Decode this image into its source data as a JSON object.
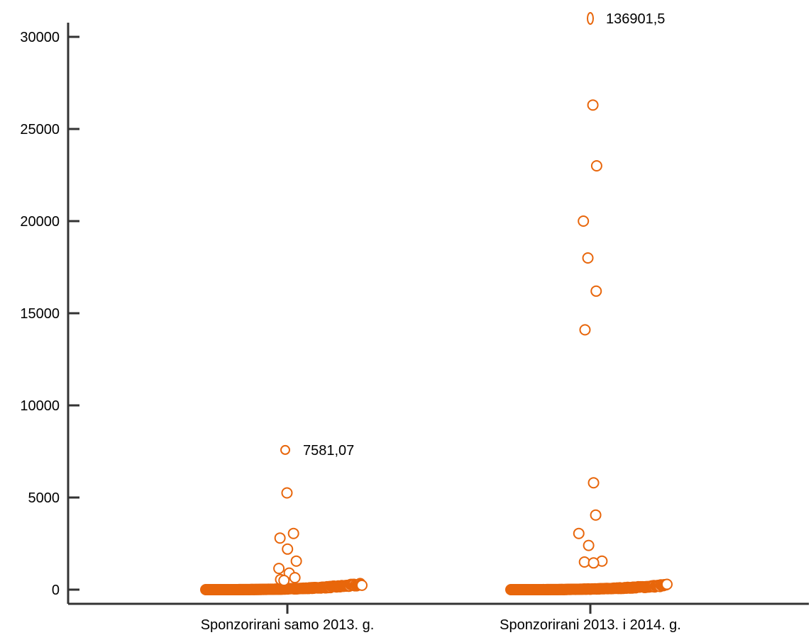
{
  "chart_data": {
    "type": "scatter",
    "title": "",
    "xlabel": "",
    "ylabel": "",
    "ylim": [
      0,
      30000
    ],
    "yticks": [
      0,
      5000,
      10000,
      15000,
      20000,
      25000,
      30000
    ],
    "grid": false,
    "categories": [
      "Sponzorirani samo 2013. g.",
      "Sponzorirani 2013. i 2014. g."
    ],
    "colors": {
      "marker": "#E8660B",
      "axis": "#333333"
    },
    "groups": [
      {
        "category": "Sponzorirani samo 2013. g.",
        "outliers": [
          7581.07,
          5250,
          3050,
          2800,
          2200,
          1550,
          1150,
          900,
          650,
          550,
          500
        ],
        "baseline_cluster": {
          "min": 0,
          "max": 350,
          "approx_count": 180
        },
        "annotation": {
          "value": 7581.07,
          "label": "7581,07"
        }
      },
      {
        "category": "Sponzorirani 2013. i 2014. g.",
        "outliers": [
          136901.5,
          26300,
          23000,
          20000,
          18000,
          16200,
          14100,
          5800,
          4050,
          3050,
          2400,
          1550,
          1500,
          1450
        ],
        "baseline_cluster": {
          "min": 0,
          "max": 300,
          "approx_count": 180
        },
        "annotation": {
          "value": 136901.5,
          "label": "136901,5"
        }
      }
    ]
  }
}
